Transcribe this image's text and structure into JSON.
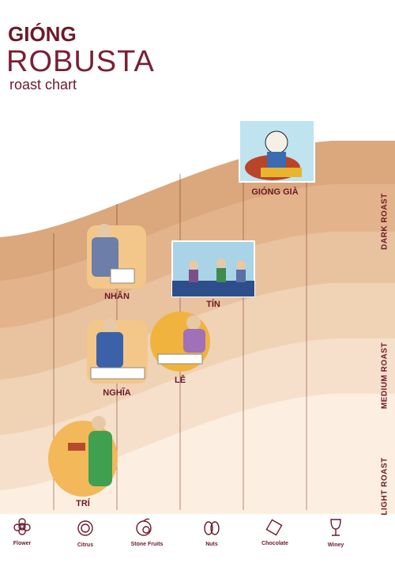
{
  "header": {
    "brand": "GIÓNG",
    "product": "ROBUSTA",
    "subtitle": "roast chart"
  },
  "roast_levels": [
    "DARK ROAST",
    "MEDIUM ROAST",
    "LIGHT ROAST"
  ],
  "flavors": [
    "Flower",
    "Citrus",
    "Stone Fruits",
    "Nuts",
    "Chocolate",
    "Winey"
  ],
  "coffees": [
    "GIÓNG GIÀ",
    "NHÂN",
    "TÍN",
    "NGHĨA",
    "LỄ",
    "TRÍ"
  ]
}
